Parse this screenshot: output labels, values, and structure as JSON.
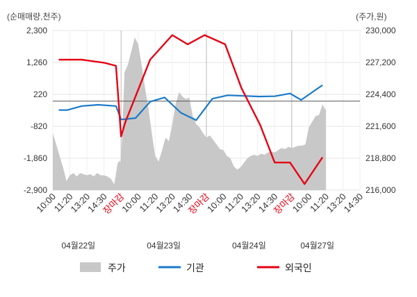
{
  "chart_data": {
    "type": "line",
    "left_axis_label": "(순매매량,천주)",
    "right_axis_label": "(주가,원)",
    "left_axis": {
      "ticks": [
        "2,300",
        "1,260",
        "220",
        "-820",
        "-1,860",
        "-2,900"
      ],
      "tick_values": [
        2300,
        1260,
        220,
        -820,
        -1860,
        -2900
      ],
      "range": [
        -2900,
        2300
      ]
    },
    "right_axis": {
      "ticks": [
        "230,000",
        "227,200",
        "224,400",
        "221,600",
        "218,800",
        "216,000"
      ],
      "tick_values": [
        230000,
        227200,
        224400,
        221600,
        218800,
        216000
      ],
      "range": [
        216000,
        230000
      ]
    },
    "x_tick_labels": [
      "10:00",
      "11:20",
      "13:20",
      "14:30",
      "장마감",
      "10:00",
      "11:20",
      "13:20",
      "14:30",
      "장마감",
      "10:00",
      "11:20",
      "13:20",
      "14:30",
      "장마감",
      "10:00",
      "11:20",
      "13:20",
      "14:30"
    ],
    "close_label": "장마감",
    "date_labels": [
      "04월22일",
      "04월23일",
      "04월24일",
      "04월27일"
    ],
    "reference_value": 0,
    "series": [
      {
        "name": "주가",
        "kind": "area",
        "axis": "right",
        "color": "#c8c8c8",
        "x": [
          0,
          0.2,
          0.4,
          0.6,
          0.8,
          1.0,
          1.2,
          1.4,
          1.6,
          1.8,
          2.0,
          2.2,
          2.4,
          2.6,
          2.8,
          3.0,
          3.2,
          3.4,
          3.6,
          3.8,
          3.95,
          4.0,
          4.2,
          4.4,
          4.6,
          4.8,
          5.0,
          5.2,
          5.4,
          5.6,
          5.8,
          6.0,
          6.2,
          6.4,
          6.6,
          6.8,
          7.0,
          7.2,
          7.4,
          7.6,
          7.8,
          8.0,
          8.2,
          8.4,
          8.6,
          8.8,
          9.0,
          9.2,
          9.4,
          9.6,
          9.8,
          10.0,
          10.2,
          10.4,
          10.6,
          10.8,
          11.0,
          11.2,
          11.4,
          11.6,
          11.8,
          12.0,
          12.2,
          12.4,
          12.6,
          12.8,
          13.0,
          13.2,
          13.4,
          13.6,
          13.8,
          14.0,
          14.2,
          14.4,
          14.6,
          14.8,
          15.0,
          15.2,
          15.4,
          15.6,
          15.8,
          16.0
        ],
        "values": [
          221000,
          220000,
          219000,
          218000,
          216800,
          217300,
          217500,
          217200,
          217500,
          217400,
          217300,
          217400,
          217200,
          217500,
          217300,
          217300,
          217200,
          217000,
          216500,
          218400,
          218600,
          218200,
          226300,
          227000,
          228200,
          229400,
          228800,
          227000,
          225000,
          223200,
          221000,
          219000,
          218500,
          219500,
          220600,
          220300,
          221800,
          223600,
          224600,
          224200,
          224000,
          224100,
          222500,
          221800,
          221500,
          221000,
          220600,
          220800,
          220400,
          220000,
          219600,
          219500,
          219000,
          218800,
          218100,
          217800,
          218000,
          218400,
          218800,
          219000,
          219100,
          219000,
          219200,
          219100,
          219300,
          219400,
          219300,
          219500,
          219700,
          219600,
          219800,
          219700,
          219800,
          219900,
          219900,
          220000,
          221500,
          222000,
          222500,
          222600,
          223500,
          223000
        ]
      },
      {
        "name": "기관",
        "kind": "line",
        "axis": "left",
        "color": "#1a7ac8",
        "x": [
          0.35,
          0.85,
          1.7,
          2.65,
          3.7,
          4.0,
          4.85,
          5.7,
          6.55,
          7.5,
          8.4,
          9.35,
          10.25,
          11.2,
          12.1,
          13.0,
          13.9,
          14.55,
          15.8
        ],
        "values": [
          -290,
          -290,
          -160,
          -120,
          -160,
          -600,
          -550,
          -20,
          120,
          -380,
          -620,
          80,
          190,
          170,
          150,
          160,
          250,
          40,
          520
        ]
      },
      {
        "name": "외국인",
        "kind": "line",
        "axis": "left",
        "color": "#e60012",
        "x": [
          0.35,
          1.7,
          3.0,
          3.7,
          4.0,
          4.25,
          5.7,
          7.0,
          7.9,
          8.9,
          10.1,
          11.05,
          12.15,
          13.0,
          13.9,
          14.75,
          15.8
        ],
        "values": [
          1350,
          1350,
          1250,
          1150,
          -1150,
          -680,
          1350,
          2150,
          1850,
          2150,
          1850,
          430,
          -780,
          -2000,
          -2000,
          -2700,
          -1830
        ]
      }
    ]
  }
}
